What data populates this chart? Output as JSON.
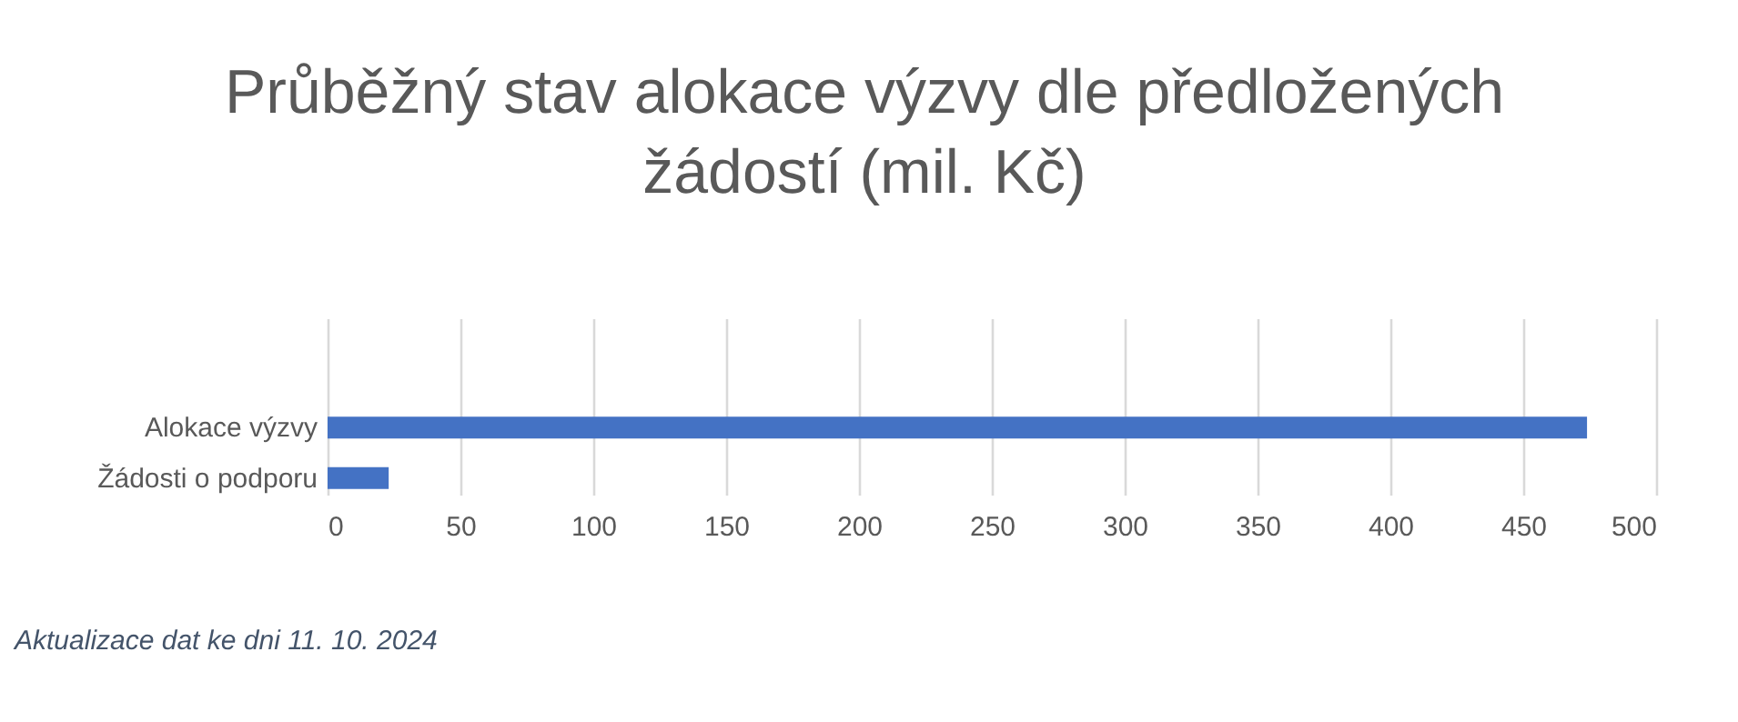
{
  "chart_data": {
    "type": "bar",
    "orientation": "horizontal",
    "title": "Průběžný stav alokace výzvy dle předložených žádostí (mil. Kč)",
    "categories": [
      "Alokace výzvy",
      "Žádosti o podporu"
    ],
    "values": [
      474,
      23
    ],
    "color": "#4472c4",
    "xlim": [
      0,
      500
    ],
    "xticks": [
      0,
      50,
      100,
      150,
      200,
      250,
      300,
      350,
      400,
      450,
      500
    ],
    "grid": "x",
    "annotations": [
      "Aktualizace dat ke dni 11. 10. 2024"
    ]
  }
}
